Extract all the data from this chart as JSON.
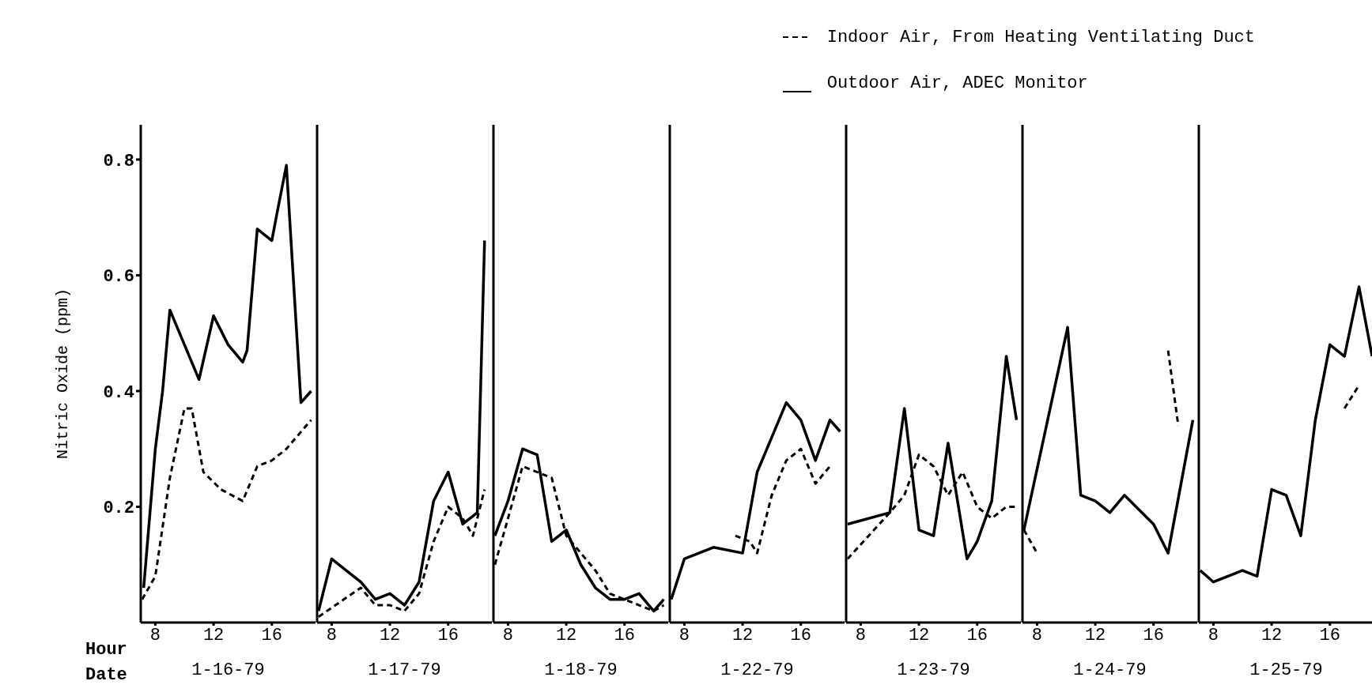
{
  "chart_data": [
    {
      "type": "line",
      "xlabel": "1-16-79",
      "ylabel": "Nitric Oxide (ppm)",
      "annotations": [
        "Hour",
        "Date"
      ],
      "legend": "top right",
      "xlim": [
        7,
        19
      ],
      "xticks": [
        8,
        12,
        16
      ],
      "ylim": [
        0,
        0.86
      ],
      "yticks": [
        0.2,
        0.4,
        0.6,
        0.8
      ],
      "grid": false,
      "marker": "none",
      "series": [
        {
          "name": "Indoor Air, From Heating Ventilating Duct",
          "color": "#000000",
          "line_style": "dashed",
          "x": [
            7.1,
            8,
            9,
            10,
            10.5,
            11.3,
            12.5,
            14,
            15,
            16,
            17,
            18.7
          ],
          "values": [
            0.04,
            0.08,
            0.25,
            0.37,
            0.37,
            0.26,
            0.23,
            0.21,
            0.27,
            0.28,
            0.3,
            0.35
          ]
        },
        {
          "name": "Outdoor Air, ADEC Monitor",
          "color": "#000000",
          "line_style": "solid",
          "x": [
            7.2,
            8,
            8.5,
            9,
            10,
            11,
            12,
            13,
            14,
            14.3,
            15,
            16,
            16.3,
            17,
            18,
            18.7
          ],
          "values": [
            0.06,
            0.3,
            0.4,
            0.54,
            0.48,
            0.42,
            0.53,
            0.48,
            0.45,
            0.47,
            0.68,
            0.66,
            0.7,
            0.79,
            0.38,
            0.4
          ]
        }
      ]
    },
    {
      "type": "line",
      "xlabel": "1-17-79",
      "tick_labels": "x",
      "xlim": [
        7,
        19
      ],
      "xticks": [
        8,
        12,
        16
      ],
      "ylim": [
        0,
        0.86
      ],
      "yticks": [
        0.2,
        0.4,
        0.6,
        0.8
      ],
      "grid": false,
      "marker": "none",
      "series": [
        {
          "color": "#000000",
          "line_style": "dashed",
          "x": [
            7.1,
            10,
            11,
            12,
            13,
            14,
            15,
            16,
            17,
            17.7,
            18.5
          ],
          "values": [
            0.01,
            0.06,
            0.03,
            0.03,
            0.02,
            0.05,
            0.14,
            0.2,
            0.18,
            0.15,
            0.23
          ]
        },
        {
          "color": "#000000",
          "line_style": "solid",
          "x": [
            7.1,
            8,
            9,
            10,
            11,
            12,
            13,
            14,
            15,
            16,
            17,
            18,
            18.5
          ],
          "values": [
            0.02,
            0.11,
            0.09,
            0.07,
            0.04,
            0.05,
            0.03,
            0.07,
            0.21,
            0.26,
            0.17,
            0.19,
            0.66
          ]
        }
      ]
    },
    {
      "type": "line",
      "xlabel": "1-18-79",
      "tick_labels": "x",
      "xlim": [
        7,
        19
      ],
      "xticks": [
        8,
        12,
        16
      ],
      "ylim": [
        0,
        0.86
      ],
      "yticks": [
        0.2,
        0.4,
        0.6,
        0.8
      ],
      "grid": false,
      "marker": "none",
      "series": [
        {
          "color": "#000000",
          "line_style": "dashed",
          "x": [
            7.1,
            8,
            9,
            10,
            11,
            12,
            13,
            14,
            15,
            16,
            17,
            18,
            18.7
          ],
          "values": [
            0.1,
            0.18,
            0.27,
            0.26,
            0.25,
            0.15,
            0.12,
            0.09,
            0.05,
            0.04,
            0.03,
            0.02,
            0.03
          ]
        },
        {
          "color": "#000000",
          "line_style": "solid",
          "x": [
            7.1,
            8,
            9,
            10,
            11,
            12,
            13,
            14,
            15,
            16,
            17,
            18,
            18.7
          ],
          "values": [
            0.15,
            0.21,
            0.3,
            0.29,
            0.14,
            0.16,
            0.1,
            0.06,
            0.04,
            0.04,
            0.05,
            0.02,
            0.04
          ]
        }
      ]
    },
    {
      "type": "line",
      "xlabel": "1-22-79",
      "tick_labels": "x",
      "xlim": [
        7,
        19
      ],
      "xticks": [
        8,
        12,
        16
      ],
      "ylim": [
        0,
        0.86
      ],
      "yticks": [
        0.2,
        0.4,
        0.6,
        0.8
      ],
      "grid": false,
      "marker": "none",
      "series": [
        {
          "color": "#000000",
          "line_style": "dashed",
          "x": [
            11.5,
            12.5,
            13,
            14,
            15,
            16,
            17,
            18
          ],
          "values": [
            0.15,
            0.14,
            0.12,
            0.22,
            0.28,
            0.3,
            0.24,
            0.27
          ]
        },
        {
          "color": "#000000",
          "line_style": "solid",
          "x": [
            7.1,
            8,
            10,
            12,
            13,
            14,
            15,
            16,
            17,
            18,
            18.7
          ],
          "values": [
            0.04,
            0.11,
            0.13,
            0.12,
            0.26,
            0.32,
            0.38,
            0.35,
            0.28,
            0.35,
            0.33
          ]
        }
      ]
    },
    {
      "type": "line",
      "xlabel": "1-23-79",
      "tick_labels": "x",
      "xlim": [
        7,
        19
      ],
      "xticks": [
        8,
        12,
        16
      ],
      "ylim": [
        0,
        0.86
      ],
      "yticks": [
        0.2,
        0.4,
        0.6,
        0.8
      ],
      "grid": false,
      "marker": "none",
      "series": [
        {
          "color": "#000000",
          "line_style": "dashed",
          "x": [
            7.1,
            10,
            11,
            12,
            13,
            14,
            15,
            16,
            17,
            18,
            18.7
          ],
          "values": [
            0.11,
            0.19,
            0.22,
            0.29,
            0.27,
            0.22,
            0.26,
            0.2,
            0.18,
            0.2,
            0.2
          ]
        },
        {
          "color": "#000000",
          "line_style": "solid",
          "x": [
            7.1,
            10,
            11,
            12,
            13,
            14,
            15.3,
            16,
            17,
            18,
            18.7
          ],
          "values": [
            0.17,
            0.19,
            0.37,
            0.16,
            0.15,
            0.31,
            0.11,
            0.14,
            0.21,
            0.46,
            0.35
          ]
        }
      ]
    },
    {
      "type": "line",
      "xlabel": "1-24-79",
      "tick_labels": "x",
      "xlim": [
        7,
        19
      ],
      "xticks": [
        8,
        12,
        16
      ],
      "ylim": [
        0,
        0.86
      ],
      "yticks": [
        0.2,
        0.4,
        0.6,
        0.8
      ],
      "grid": false,
      "marker": "none",
      "series": [
        {
          "color": "#000000",
          "line_style": "dashed",
          "x": [
            7.1,
            8,
            12,
            17,
            17.7
          ],
          "values": [
            0.16,
            0.12,
            null,
            0.47,
            0.34
          ]
        },
        {
          "color": "#000000",
          "line_style": "solid",
          "x": [
            7.1,
            10.1,
            11,
            12,
            13,
            14,
            16,
            17,
            18.7
          ],
          "values": [
            0.16,
            0.51,
            0.22,
            0.21,
            0.19,
            0.22,
            0.17,
            0.12,
            0.35
          ]
        }
      ]
    },
    {
      "type": "line",
      "xlabel": "1-25-79",
      "tick_labels": "x",
      "xlim": [
        7,
        19
      ],
      "xticks": [
        8,
        12,
        16
      ],
      "ylim": [
        0,
        0.86
      ],
      "yticks": [
        0.2,
        0.4,
        0.6,
        0.8
      ],
      "grid": false,
      "marker": "none",
      "series": [
        {
          "color": "#000000",
          "line_style": "dashed",
          "x": [
            17,
            18
          ],
          "values": [
            0.37,
            0.41
          ]
        },
        {
          "color": "#000000",
          "line_style": "solid",
          "x": [
            7.1,
            8,
            9,
            10,
            11,
            12,
            13,
            14,
            15,
            16,
            17,
            18,
            18.9
          ],
          "values": [
            0.09,
            0.07,
            0.08,
            0.09,
            0.08,
            0.23,
            0.22,
            0.15,
            0.35,
            0.48,
            0.46,
            0.58,
            0.46
          ]
        }
      ]
    }
  ]
}
